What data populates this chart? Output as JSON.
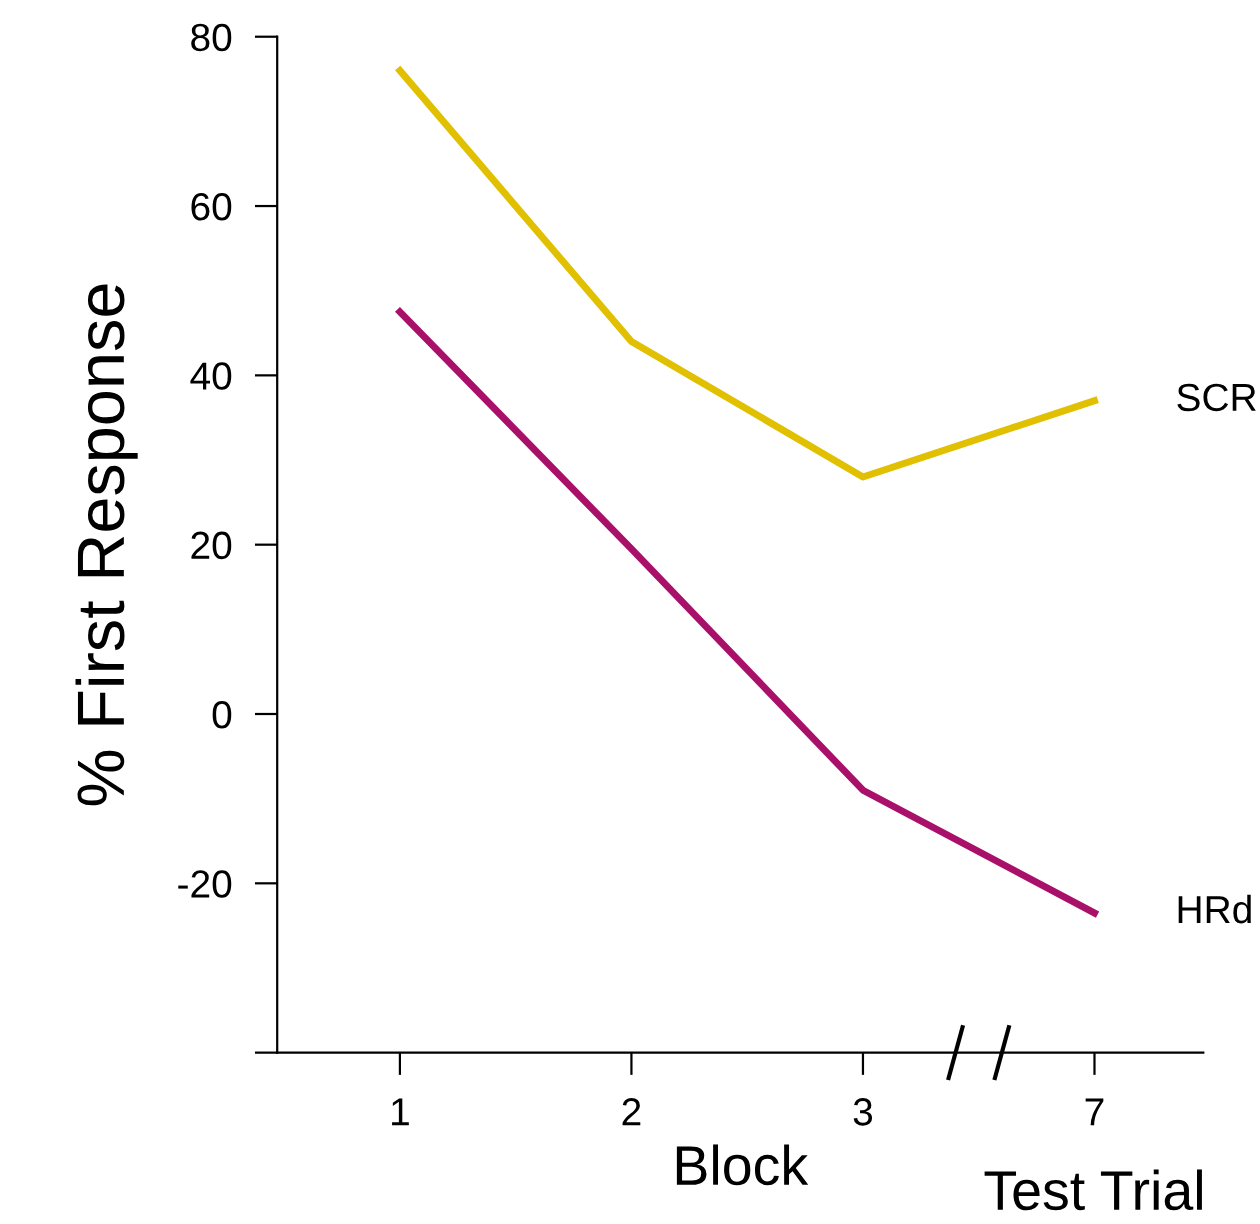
{
  "chart_data": {
    "type": "line",
    "ylabel": "% First Response",
    "xlabel": "Block",
    "annotations": [
      "Test Trial"
    ],
    "categories": [
      "1",
      "2",
      "3",
      "7"
    ],
    "series": [
      {
        "name": "SCR",
        "color": "#e0c000",
        "values": [
          76,
          44,
          28,
          37
        ]
      },
      {
        "name": "HRd",
        "color": "#a8106a",
        "values": [
          47.5,
          19.5,
          -9,
          -23.5
        ]
      }
    ],
    "ylim": [
      -40,
      80
    ],
    "yticks": [
      {
        "value": -40,
        "label": null
      },
      -20,
      0,
      20,
      40,
      60,
      80
    ],
    "grid": false,
    "legend": false,
    "marker": "none",
    "line_style": "solid"
  }
}
